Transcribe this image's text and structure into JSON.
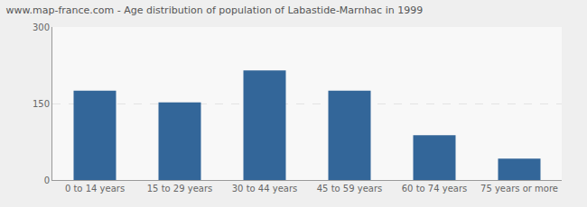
{
  "chart_data": {
    "type": "bar",
    "title": "www.map-france.com - Age distribution of population of Labastide-Marnhac in 1999",
    "categories": [
      "0 to 14 years",
      "15 to 29 years",
      "30 to 44 years",
      "45 to 59 years",
      "60 to 74 years",
      "75 years or more"
    ],
    "values": [
      175,
      152,
      215,
      175,
      88,
      42
    ],
    "color": "#336699",
    "ylim": [
      0,
      300
    ],
    "yticks": [
      0,
      150,
      300
    ],
    "grid": true
  }
}
